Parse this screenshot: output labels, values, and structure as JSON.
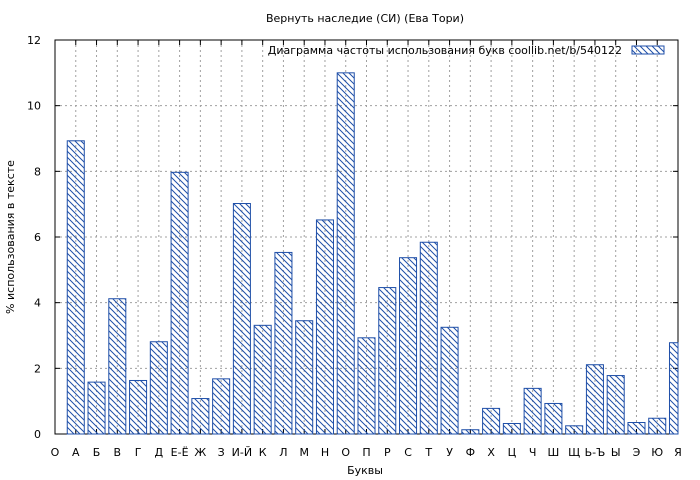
{
  "chart_data": {
    "type": "bar",
    "title": "Вернуть наследие (СИ) (Ева Тори)",
    "legend_label": "Диаграмма частоты использования букв  coollib.net/b/540122",
    "legend_position": "top-right",
    "xlabel": "Буквы",
    "ylabel": "% использования в тексте",
    "ylim": [
      0,
      12
    ],
    "yticks": [
      "0",
      "2",
      "4",
      "6",
      "8",
      "10",
      "12"
    ],
    "grid": true,
    "colors": {
      "bar_stroke": "#1f4fa8",
      "grid": "#a0a0a0"
    },
    "categories": [
      "О",
      "А",
      "Б",
      "В",
      "Г",
      "Д",
      "Е-Ё",
      "Ж",
      "З",
      "И-Й",
      "К",
      "Л",
      "М",
      "Н",
      "О",
      "П",
      "Р",
      "С",
      "Т",
      "У",
      "Ф",
      "Х",
      "Ц",
      "Ч",
      "Ш",
      "Щ",
      "Ь-Ъ",
      "Ы",
      "Э",
      "Ю",
      "Я"
    ],
    "values": [
      null,
      8.93,
      1.58,
      4.12,
      1.63,
      2.81,
      7.97,
      1.08,
      1.68,
      7.02,
      3.31,
      5.53,
      3.45,
      6.52,
      11.0,
      2.93,
      4.46,
      5.37,
      5.84,
      3.25,
      0.13,
      0.78,
      0.32,
      1.39,
      0.93,
      0.25,
      2.11,
      1.78,
      0.35,
      0.48,
      2.78
    ]
  }
}
